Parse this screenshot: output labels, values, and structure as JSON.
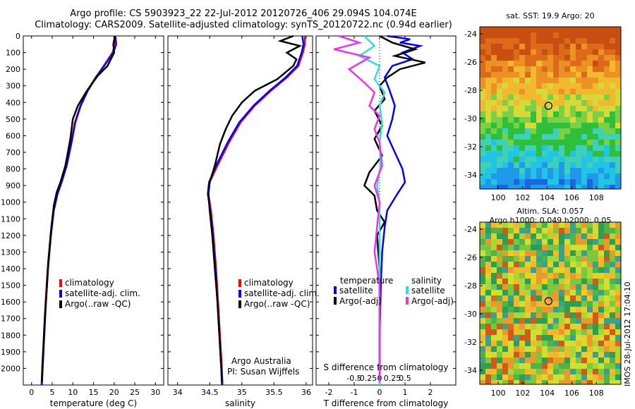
{
  "title_line1": "Argo profile: CS 5903923_22 22-Jul-2012 20120726_406 29.094S 104.074E",
  "title_line2": "Climatology: CARS2009. Satellite-adjusted climatology: synTS_20120722.nc (0.94d earlier)",
  "colors": {
    "climatology": "#ff0000",
    "satellite": "#0000ff",
    "argo": "#000000",
    "sal_satellite": "#33dddd",
    "sal_argo": "#ee33ee"
  },
  "chart_data": [
    {
      "type": "line",
      "xlabel": "temperature (deg C)",
      "xticks": [
        "0",
        "5",
        "10",
        "15",
        "20",
        "25",
        "30"
      ],
      "xlim": [
        -2,
        32
      ],
      "ylim": [
        0,
        2100
      ],
      "yticks": [
        "0",
        "100",
        "200",
        "300",
        "400",
        "500",
        "600",
        "700",
        "800",
        "900",
        "1000",
        "1100",
        "1200",
        "1300",
        "1400",
        "1500",
        "1600",
        "1700",
        "1800",
        "1900",
        "2000"
      ],
      "legend": [
        "climatology",
        "satellite-adj. clim.",
        "Argo(..raw -QC)"
      ],
      "series": [
        {
          "key": "clim",
          "color": "#ff0000",
          "points": [
            [
              20,
              0
            ],
            [
              20.2,
              50
            ],
            [
              19.6,
              100
            ],
            [
              17.5,
              180
            ],
            [
              15.5,
              250
            ],
            [
              13.5,
              330
            ],
            [
              11.8,
              420
            ],
            [
              10.5,
              520
            ],
            [
              9.6,
              640
            ],
            [
              8.4,
              780
            ],
            [
              7.2,
              880
            ],
            [
              6.2,
              950
            ],
            [
              5.3,
              1050
            ],
            [
              4.6,
              1200
            ],
            [
              3.9,
              1400
            ],
            [
              3.4,
              1600
            ],
            [
              3.0,
              1800
            ],
            [
              2.6,
              2000
            ],
            [
              2.4,
              2100
            ]
          ]
        },
        {
          "key": "sat",
          "color": "#0000ff",
          "points": [
            [
              20.3,
              0
            ],
            [
              20.5,
              50
            ],
            [
              19.8,
              100
            ],
            [
              17.6,
              180
            ],
            [
              15.6,
              250
            ],
            [
              13.6,
              330
            ],
            [
              11.9,
              420
            ],
            [
              10.6,
              520
            ],
            [
              9.7,
              640
            ],
            [
              8.5,
              780
            ],
            [
              7.3,
              880
            ],
            [
              6.3,
              950
            ],
            [
              5.4,
              1050
            ],
            [
              4.7,
              1200
            ],
            [
              4.0,
              1400
            ],
            [
              3.5,
              1600
            ],
            [
              3.1,
              1800
            ],
            [
              2.7,
              2000
            ],
            [
              2.5,
              2100
            ]
          ]
        },
        {
          "key": "argo",
          "color": "#000000",
          "points": [
            [
              20.2,
              0
            ],
            [
              19.8,
              50
            ],
            [
              20.0,
              100
            ],
            [
              18.4,
              180
            ],
            [
              16.0,
              240
            ],
            [
              13.4,
              330
            ],
            [
              11.2,
              420
            ],
            [
              10.0,
              500
            ],
            [
              9.4,
              620
            ],
            [
              8.2,
              780
            ],
            [
              7.0,
              880
            ],
            [
              6.1,
              940
            ],
            [
              5.4,
              1020
            ],
            [
              4.8,
              1150
            ],
            [
              4.1,
              1350
            ],
            [
              3.6,
              1550
            ],
            [
              3.2,
              1700
            ],
            [
              2.9,
              1850
            ],
            [
              2.6,
              2000
            ],
            [
              2.5,
              2080
            ]
          ]
        }
      ]
    },
    {
      "type": "line",
      "xlabel": "salinity",
      "xticks": [
        "34",
        "34.5",
        "35",
        "35.5",
        "36"
      ],
      "xlim": [
        33.85,
        36.1
      ],
      "ylim": [
        0,
        2100
      ],
      "legend": [
        "climatology",
        "satellite-adj. clim.",
        "Argo(..raw -QC)"
      ],
      "annotation": [
        "Argo Australia",
        "PI: Susan Wijffels"
      ],
      "series": [
        {
          "key": "clim",
          "color": "#ff0000",
          "points": [
            [
              35.98,
              0
            ],
            [
              35.98,
              50
            ],
            [
              35.95,
              100
            ],
            [
              35.88,
              180
            ],
            [
              35.7,
              250
            ],
            [
              35.45,
              330
            ],
            [
              35.2,
              420
            ],
            [
              34.98,
              520
            ],
            [
              34.8,
              640
            ],
            [
              34.62,
              780
            ],
            [
              34.5,
              880
            ],
            [
              34.48,
              950
            ],
            [
              34.52,
              1050
            ],
            [
              34.56,
              1200
            ],
            [
              34.6,
              1400
            ],
            [
              34.63,
              1600
            ],
            [
              34.66,
              1800
            ],
            [
              34.69,
              2000
            ],
            [
              34.7,
              2100
            ]
          ]
        },
        {
          "key": "sat",
          "color": "#0000ff",
          "points": [
            [
              35.94,
              0
            ],
            [
              35.96,
              50
            ],
            [
              35.93,
              100
            ],
            [
              35.86,
              180
            ],
            [
              35.68,
              250
            ],
            [
              35.43,
              330
            ],
            [
              35.18,
              420
            ],
            [
              34.96,
              520
            ],
            [
              34.78,
              640
            ],
            [
              34.6,
              780
            ],
            [
              34.49,
              880
            ],
            [
              34.47,
              950
            ],
            [
              34.51,
              1050
            ],
            [
              34.55,
              1200
            ],
            [
              34.59,
              1400
            ],
            [
              34.62,
              1600
            ],
            [
              34.65,
              1800
            ],
            [
              34.68,
              2000
            ],
            [
              34.69,
              2100
            ]
          ]
        },
        {
          "key": "argo",
          "color": "#000000",
          "points": [
            [
              35.8,
              0
            ],
            [
              35.6,
              30
            ],
            [
              35.9,
              60
            ],
            [
              35.7,
              100
            ],
            [
              35.85,
              140
            ],
            [
              35.8,
              180
            ],
            [
              35.55,
              260
            ],
            [
              35.2,
              330
            ],
            [
              35.0,
              400
            ],
            [
              34.85,
              480
            ],
            [
              34.75,
              560
            ],
            [
              34.66,
              650
            ],
            [
              34.58,
              780
            ],
            [
              34.5,
              880
            ],
            [
              34.48,
              950
            ],
            [
              34.5,
              1050
            ],
            [
              34.54,
              1200
            ],
            [
              34.58,
              1400
            ],
            [
              34.62,
              1600
            ],
            [
              34.65,
              1800
            ],
            [
              34.68,
              2000
            ],
            [
              34.69,
              2080
            ]
          ]
        }
      ]
    },
    {
      "type": "line",
      "xlabel": "T difference from climatology",
      "xlabel_top": "S difference from climatology",
      "xticks": [
        "-2",
        "-1",
        "0",
        "1",
        "2"
      ],
      "xticks_top": [
        "-0.5",
        "-0.25",
        "0",
        "0.25",
        "0.5"
      ],
      "xlim": [
        -2.5,
        3.0
      ],
      "ylim": [
        0,
        2100
      ],
      "legend_headers": [
        "temperature",
        "salinity"
      ],
      "legend": [
        "satellite",
        "Argo(-adj)",
        "satellite",
        "Argo(-adj)"
      ],
      "series": [
        {
          "key": "t_sat",
          "color": "#0000ff",
          "points": [
            [
              0.3,
              0
            ],
            [
              1.2,
              20
            ],
            [
              0.8,
              40
            ],
            [
              1.6,
              60
            ],
            [
              0.9,
              100
            ],
            [
              1.3,
              140
            ],
            [
              0.5,
              180
            ],
            [
              0.2,
              250
            ],
            [
              0.4,
              330
            ],
            [
              0.6,
              420
            ],
            [
              0.5,
              500
            ],
            [
              0.3,
              600
            ],
            [
              0.6,
              700
            ],
            [
              0.9,
              800
            ],
            [
              1.0,
              880
            ],
            [
              0.7,
              950
            ],
            [
              0.3,
              1050
            ],
            [
              0.2,
              1150
            ],
            [
              0.1,
              1300
            ],
            [
              0.05,
              1500
            ],
            [
              0.0,
              1800
            ],
            [
              0.0,
              2100
            ]
          ]
        },
        {
          "key": "t_argo",
          "color": "#000000",
          "points": [
            [
              0.0,
              0
            ],
            [
              0.5,
              40
            ],
            [
              1.4,
              80
            ],
            [
              0.6,
              120
            ],
            [
              1.8,
              160
            ],
            [
              0.8,
              200
            ],
            [
              0.3,
              250
            ],
            [
              0.0,
              300
            ],
            [
              0.2,
              380
            ],
            [
              -0.2,
              450
            ],
            [
              0.1,
              540
            ],
            [
              -0.2,
              620
            ],
            [
              0.1,
              720
            ],
            [
              -0.4,
              820
            ],
            [
              -0.6,
              900
            ],
            [
              -0.2,
              960
            ],
            [
              -0.1,
              1050
            ],
            [
              0.2,
              1120
            ],
            [
              -0.1,
              1200
            ],
            [
              0.0,
              1400
            ],
            [
              0.0,
              1800
            ],
            [
              0.0,
              2080
            ]
          ]
        },
        {
          "key": "s_sat",
          "color": "#33dddd",
          "points": [
            [
              -0.3,
              0
            ],
            [
              -0.1,
              60
            ],
            [
              -0.4,
              120
            ],
            [
              0.0,
              180
            ],
            [
              -0.1,
              260
            ],
            [
              0.1,
              340
            ],
            [
              0.0,
              420
            ],
            [
              0.05,
              520
            ],
            [
              0.0,
              640
            ],
            [
              0.02,
              780
            ],
            [
              -0.05,
              900
            ],
            [
              0.0,
              1000
            ],
            [
              0.0,
              1200
            ],
            [
              0.0,
              1500
            ],
            [
              0.0,
              1800
            ],
            [
              0.0,
              2100
            ]
          ]
        },
        {
          "key": "s_argo",
          "color": "#ee33ee",
          "points": [
            [
              -0.8,
              0
            ],
            [
              -0.4,
              40
            ],
            [
              -0.9,
              80
            ],
            [
              -0.2,
              130
            ],
            [
              -0.6,
              200
            ],
            [
              -0.3,
              280
            ],
            [
              -0.1,
              340
            ],
            [
              -0.2,
              420
            ],
            [
              0.0,
              480
            ],
            [
              -0.1,
              560
            ],
            [
              0.0,
              640
            ],
            [
              0.05,
              780
            ],
            [
              -0.1,
              900
            ],
            [
              0.0,
              1000
            ],
            [
              -0.1,
              1300
            ],
            [
              0.0,
              1500
            ],
            [
              0.0,
              1800
            ],
            [
              0.0,
              2080
            ]
          ]
        }
      ]
    },
    {
      "type": "heatmap",
      "title": "sat. SST: 19.9 Argo: 20",
      "xticks": [
        "100",
        "102",
        "104",
        "106",
        "108"
      ],
      "yticks": [
        "-24",
        "-26",
        "-28",
        "-30",
        "-32",
        "-34"
      ],
      "xlim": [
        98.5,
        110
      ],
      "ylim": [
        -35,
        -23.5
      ],
      "marker": [
        104.1,
        -29.1
      ]
    },
    {
      "type": "heatmap",
      "title_line1": "Altim. SLA: 0.057",
      "title_line2": "Argo h1000: 0.049 h2000: 0.05",
      "xticks": [
        "100",
        "102",
        "104",
        "106",
        "108"
      ],
      "yticks": [
        "-24",
        "-26",
        "-28",
        "-30",
        "-32",
        "-34"
      ],
      "xlim": [
        98.5,
        110
      ],
      "ylim": [
        -35,
        -23.5
      ],
      "marker": [
        104.1,
        -29.1
      ],
      "side_text": "IMOS 28-Jul-2012 17:04:10"
    }
  ]
}
